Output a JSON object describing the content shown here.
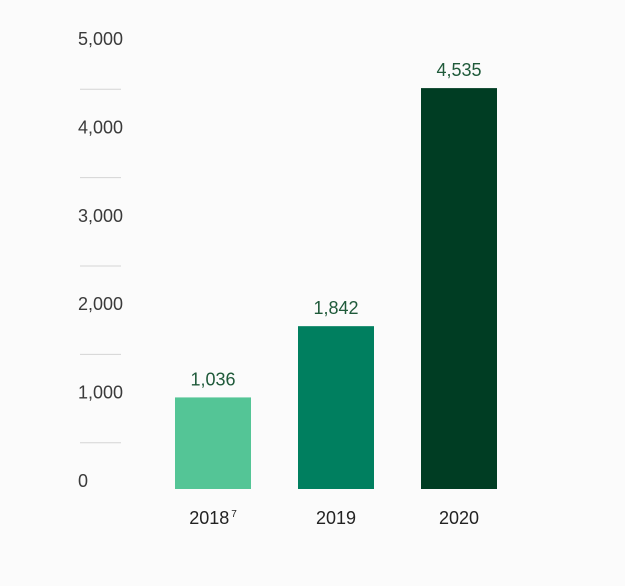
{
  "chart_data": {
    "type": "bar",
    "categories": [
      "2018",
      "2019",
      "2020"
    ],
    "category_superscripts": [
      "7",
      "",
      ""
    ],
    "values": [
      1036,
      1842,
      4535
    ],
    "value_labels": [
      "1,036",
      "1,842",
      "4,535"
    ],
    "colors": [
      "#54c596",
      "#007f5f",
      "#003d23"
    ],
    "title": "",
    "xlabel": "",
    "ylabel": "",
    "ylim": [
      0,
      5000
    ],
    "yticks": [
      0,
      1000,
      2000,
      3000,
      4000,
      5000
    ],
    "ytick_labels": [
      "0",
      "1,000",
      "2,000",
      "3,000",
      "4,000",
      "5,000"
    ],
    "grid": true,
    "legend": "none"
  }
}
